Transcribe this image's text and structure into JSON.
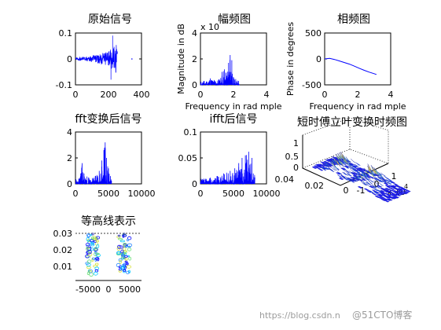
{
  "chart_data": [
    {
      "type": "line",
      "title": "原始信号",
      "xlim": [
        0,
        400
      ],
      "ylim": [
        -0.1,
        0.1
      ],
      "xticks": [
        "0",
        "200",
        "400"
      ],
      "yticks": [
        "0.1",
        "0",
        "-0.1"
      ],
      "color": "#0000ff",
      "envelope": {
        "x": [
          0,
          50,
          100,
          150,
          200,
          230,
          250,
          255
        ],
        "amp": [
          0.005,
          0.008,
          0.012,
          0.02,
          0.03,
          0.045,
          0.06,
          0.05
        ]
      },
      "stray_points": [
        [
          225,
          0.09
        ],
        [
          215,
          -0.08
        ]
      ]
    },
    {
      "type": "line",
      "title": "幅频图",
      "exponent_label": "x 10",
      "ylabel": "Magnitude in dB",
      "xlabel": "Frequency in rad mple",
      "xlim": [
        0,
        4
      ],
      "ylim": [
        0,
        4
      ],
      "xticks": [
        "0",
        "2",
        "4"
      ],
      "yticks": [
        "4",
        "2",
        "0"
      ],
      "color": "#0000ff",
      "peaks": [
        [
          0.2,
          0.3
        ],
        [
          0.6,
          0.5
        ],
        [
          1.1,
          0.4
        ],
        [
          1.3,
          1.0
        ],
        [
          1.45,
          1.2
        ],
        [
          1.55,
          0.9
        ],
        [
          1.7,
          1.7
        ],
        [
          1.8,
          2.3
        ],
        [
          1.9,
          1.9
        ],
        [
          2.0,
          0.6
        ],
        [
          2.3,
          0.3
        ]
      ]
    },
    {
      "type": "line",
      "title": "相频图",
      "ylabel": "Phase in degrees",
      "xlabel": "Frequency in rad mple",
      "xlim": [
        0,
        4
      ],
      "ylim": [
        -500,
        500
      ],
      "xticks": [
        "0",
        "2",
        "4"
      ],
      "yticks": [
        "500",
        "0",
        "-500"
      ],
      "color": "#0000ff",
      "x": [
        0,
        0.3,
        0.6,
        0.9,
        1.2,
        1.5,
        1.8,
        2.1,
        2.4,
        2.7,
        3.0,
        3.14
      ],
      "y": [
        0,
        10,
        -10,
        -40,
        -70,
        -100,
        -140,
        -180,
        -220,
        -255,
        -285,
        -300
      ]
    },
    {
      "type": "line",
      "title": "fft变换后信号",
      "xlim": [
        0,
        10000
      ],
      "ylim": [
        0,
        4
      ],
      "xticks": [
        "0",
        "5000",
        "10000"
      ],
      "yticks": [
        "4",
        "2",
        "0"
      ],
      "color": "#0000ff",
      "peaks": [
        [
          500,
          0.4
        ],
        [
          1000,
          1.6
        ],
        [
          1300,
          0.8
        ],
        [
          2000,
          0.5
        ],
        [
          3000,
          0.6
        ],
        [
          3600,
          1.0
        ],
        [
          4000,
          1.8
        ],
        [
          4300,
          2.6
        ],
        [
          4500,
          3.2
        ],
        [
          4700,
          2.0
        ],
        [
          5000,
          1.2
        ],
        [
          5300,
          0.6
        ]
      ]
    },
    {
      "type": "line",
      "title": "ifft后信号",
      "xlim": [
        0,
        10000
      ],
      "ylim": [
        0,
        0.1
      ],
      "xticks": [
        "0",
        "5000",
        "10000"
      ],
      "yticks": [
        "0.1",
        "0.05",
        "0"
      ],
      "color": "#0000ff",
      "peaks": [
        [
          500,
          0.01
        ],
        [
          1500,
          0.012
        ],
        [
          2500,
          0.015
        ],
        [
          3500,
          0.02
        ],
        [
          4500,
          0.025
        ],
        [
          5200,
          0.03
        ],
        [
          5800,
          0.04
        ],
        [
          6300,
          0.05
        ],
        [
          6800,
          0.055
        ],
        [
          7300,
          0.062
        ],
        [
          7800,
          0.05
        ],
        [
          8000,
          0.02
        ]
      ]
    },
    {
      "type": "heatmap",
      "title": "短时傅立叶变换时频图",
      "surface": true,
      "zticks": [
        "1",
        "0.5",
        "0"
      ],
      "yticks": [
        "0.04",
        "0.02",
        "0"
      ],
      "xticks": [
        "-1",
        "0",
        "1"
      ],
      "exponent_label": "x 10",
      "exponent_power": "4"
    },
    {
      "type": "heatmap",
      "title": "等高线表示",
      "contour": true,
      "xlim": [
        -8000,
        8000
      ],
      "ylim": [
        0,
        0.033
      ],
      "xticks": [
        "-5000",
        "0",
        "5000"
      ],
      "yticks": [
        "0.03",
        "0.02",
        "0.01"
      ]
    }
  ],
  "watermark": {
    "url": "https://blog.csdn.n",
    "brand": "@51CTO博客"
  }
}
